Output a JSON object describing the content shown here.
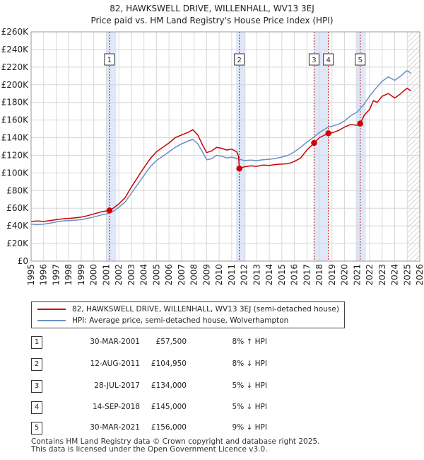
{
  "title_line1": "82, HAWKSWELL DRIVE, WILLENHALL, WV13 3EJ",
  "title_line2": "Price paid vs. HM Land Registry's House Price Index (HPI)",
  "colors": {
    "price_line": "#cc0000",
    "hpi_line": "#6a8fc4",
    "shade": "#dfe8f7",
    "vline": "#cc0000",
    "grid": "#d8d8d8"
  },
  "chart_data": {
    "type": "line",
    "xlim": [
      1995,
      2026
    ],
    "ylim": [
      0,
      260000
    ],
    "y_ticks": [
      {
        "value": 0,
        "label": "£0"
      },
      {
        "value": 20000,
        "label": "£20K"
      },
      {
        "value": 40000,
        "label": "£40K"
      },
      {
        "value": 60000,
        "label": "£60K"
      },
      {
        "value": 80000,
        "label": "£80K"
      },
      {
        "value": 100000,
        "label": "£100K"
      },
      {
        "value": 120000,
        "label": "£120K"
      },
      {
        "value": 140000,
        "label": "£140K"
      },
      {
        "value": 160000,
        "label": "£160K"
      },
      {
        "value": 180000,
        "label": "£180K"
      },
      {
        "value": 200000,
        "label": "£200K"
      },
      {
        "value": 220000,
        "label": "£220K"
      },
      {
        "value": 240000,
        "label": "£240K"
      },
      {
        "value": 260000,
        "label": "£260K"
      }
    ],
    "x_ticks": [
      "1995",
      "1996",
      "1997",
      "1998",
      "1999",
      "2000",
      "2001",
      "2002",
      "2003",
      "2004",
      "2005",
      "2006",
      "2007",
      "2008",
      "2009",
      "2010",
      "2011",
      "2012",
      "2013",
      "2014",
      "2015",
      "2016",
      "2017",
      "2018",
      "2019",
      "2020",
      "2021",
      "2022",
      "2023",
      "2024",
      "2025",
      "2026"
    ],
    "series": [
      {
        "name": "82, HAWKSWELL DRIVE, WILLENHALL, WV13 3EJ (semi-detached house)",
        "color": "#cc0000",
        "points": [
          [
            1995.0,
            45000
          ],
          [
            1995.5,
            45500
          ],
          [
            1996.0,
            45000
          ],
          [
            1996.5,
            46000
          ],
          [
            1997.0,
            47000
          ],
          [
            1997.5,
            48000
          ],
          [
            1998.0,
            48500
          ],
          [
            1998.5,
            49000
          ],
          [
            1999.0,
            50000
          ],
          [
            1999.5,
            51500
          ],
          [
            2000.0,
            53500
          ],
          [
            2000.5,
            55500
          ],
          [
            2001.0,
            57000
          ],
          [
            2001.25,
            57500
          ],
          [
            2001.6,
            60500
          ],
          [
            2002.0,
            65000
          ],
          [
            2002.5,
            72000
          ],
          [
            2003.0,
            84000
          ],
          [
            2003.5,
            95000
          ],
          [
            2004.0,
            106000
          ],
          [
            2004.5,
            116000
          ],
          [
            2005.0,
            124000
          ],
          [
            2005.5,
            129000
          ],
          [
            2006.0,
            134000
          ],
          [
            2006.5,
            140000
          ],
          [
            2007.0,
            143000
          ],
          [
            2007.5,
            146000
          ],
          [
            2007.9,
            149000
          ],
          [
            2008.3,
            143000
          ],
          [
            2008.7,
            131000
          ],
          [
            2009.0,
            123000
          ],
          [
            2009.4,
            125000
          ],
          [
            2009.8,
            129000
          ],
          [
            2010.2,
            128000
          ],
          [
            2010.6,
            126000
          ],
          [
            2011.0,
            127000
          ],
          [
            2011.4,
            124000
          ],
          [
            2011.55,
            119000
          ],
          [
            2011.61,
            104950
          ],
          [
            2012.0,
            107000
          ],
          [
            2012.5,
            108000
          ],
          [
            2013.0,
            107500
          ],
          [
            2013.5,
            109000
          ],
          [
            2014.0,
            108500
          ],
          [
            2014.5,
            109500
          ],
          [
            2015.0,
            110000
          ],
          [
            2015.5,
            110500
          ],
          [
            2016.0,
            113000
          ],
          [
            2016.5,
            117000
          ],
          [
            2017.0,
            126000
          ],
          [
            2017.57,
            134000
          ],
          [
            2018.0,
            140000
          ],
          [
            2018.7,
            145000
          ],
          [
            2019.0,
            145500
          ],
          [
            2019.5,
            148000
          ],
          [
            2020.0,
            152000
          ],
          [
            2020.5,
            155000
          ],
          [
            2021.0,
            154000
          ],
          [
            2021.25,
            156000
          ],
          [
            2021.6,
            166000
          ],
          [
            2022.0,
            172000
          ],
          [
            2022.3,
            182000
          ],
          [
            2022.6,
            180000
          ],
          [
            2023.0,
            187000
          ],
          [
            2023.5,
            190000
          ],
          [
            2024.0,
            185000
          ],
          [
            2024.4,
            189000
          ],
          [
            2024.8,
            194000
          ],
          [
            2025.0,
            196000
          ],
          [
            2025.3,
            193000
          ]
        ]
      },
      {
        "name": "HPI: Average price, semi-detached house, Wolverhampton",
        "color": "#6a8fc4",
        "points": [
          [
            1995.0,
            42000
          ],
          [
            1995.5,
            41500
          ],
          [
            1996.0,
            42000
          ],
          [
            1996.5,
            43000
          ],
          [
            1997.0,
            44500
          ],
          [
            1997.5,
            45500
          ],
          [
            1998.0,
            46000
          ],
          [
            1998.5,
            46500
          ],
          [
            1999.0,
            47000
          ],
          [
            1999.5,
            48500
          ],
          [
            2000.0,
            50000
          ],
          [
            2000.5,
            52000
          ],
          [
            2001.0,
            53500
          ],
          [
            2001.5,
            56000
          ],
          [
            2002.0,
            61000
          ],
          [
            2002.5,
            67000
          ],
          [
            2003.0,
            77000
          ],
          [
            2003.5,
            87000
          ],
          [
            2004.0,
            97000
          ],
          [
            2004.5,
            107000
          ],
          [
            2005.0,
            114000
          ],
          [
            2005.5,
            119000
          ],
          [
            2006.0,
            124000
          ],
          [
            2006.5,
            129000
          ],
          [
            2007.0,
            133000
          ],
          [
            2007.5,
            136000
          ],
          [
            2007.9,
            138000
          ],
          [
            2008.3,
            133000
          ],
          [
            2008.7,
            123000
          ],
          [
            2009.0,
            115000
          ],
          [
            2009.4,
            116000
          ],
          [
            2009.8,
            120000
          ],
          [
            2010.2,
            119000
          ],
          [
            2010.6,
            117000
          ],
          [
            2011.0,
            118000
          ],
          [
            2011.5,
            116000
          ],
          [
            2012.0,
            114000
          ],
          [
            2012.5,
            114500
          ],
          [
            2013.0,
            114000
          ],
          [
            2013.5,
            115000
          ],
          [
            2014.0,
            115500
          ],
          [
            2014.5,
            116500
          ],
          [
            2015.0,
            118000
          ],
          [
            2015.5,
            120000
          ],
          [
            2016.0,
            124000
          ],
          [
            2016.5,
            129000
          ],
          [
            2017.0,
            135000
          ],
          [
            2017.5,
            140000
          ],
          [
            2018.0,
            146000
          ],
          [
            2018.7,
            152000
          ],
          [
            2019.0,
            153000
          ],
          [
            2019.5,
            155000
          ],
          [
            2020.0,
            159000
          ],
          [
            2020.5,
            165000
          ],
          [
            2021.0,
            169000
          ],
          [
            2021.5,
            177000
          ],
          [
            2022.0,
            187000
          ],
          [
            2022.5,
            196000
          ],
          [
            2023.0,
            204000
          ],
          [
            2023.5,
            209000
          ],
          [
            2024.0,
            205000
          ],
          [
            2024.5,
            210000
          ],
          [
            2024.8,
            214000
          ],
          [
            2025.0,
            216000
          ],
          [
            2025.3,
            213000
          ]
        ]
      }
    ],
    "shaded_ranges": [
      [
        2001.0,
        2001.8
      ],
      [
        2011.35,
        2012.1
      ],
      [
        2017.57,
        2018.7
      ],
      [
        2020.9,
        2021.7
      ]
    ],
    "hatch_from": 2025.0,
    "markers": [
      {
        "num": "1",
        "x": 2001.25,
        "y": 57500
      },
      {
        "num": "2",
        "x": 2011.61,
        "y": 104950
      },
      {
        "num": "3",
        "x": 2017.57,
        "y": 134000
      },
      {
        "num": "4",
        "x": 2018.71,
        "y": 145000
      },
      {
        "num": "5",
        "x": 2021.25,
        "y": 156000
      }
    ]
  },
  "legend": {
    "price_label": "82, HAWKSWELL DRIVE, WILLENHALL, WV13 3EJ (semi-detached house)",
    "hpi_label": "HPI: Average price, semi-detached house, Wolverhampton"
  },
  "sales": [
    {
      "num": "1",
      "date": "30-MAR-2001",
      "price": "£57,500",
      "hpi": "8% ↑ HPI"
    },
    {
      "num": "2",
      "date": "12-AUG-2011",
      "price": "£104,950",
      "hpi": "8% ↓ HPI"
    },
    {
      "num": "3",
      "date": "28-JUL-2017",
      "price": "£134,000",
      "hpi": "5% ↓ HPI"
    },
    {
      "num": "4",
      "date": "14-SEP-2018",
      "price": "£145,000",
      "hpi": "5% ↓ HPI"
    },
    {
      "num": "5",
      "date": "30-MAR-2021",
      "price": "£156,000",
      "hpi": "9% ↓ HPI"
    }
  ],
  "footer": {
    "line1": "Contains HM Land Registry data © Crown copyright and database right 2025.",
    "line2": "This data is licensed under the Open Government Licence v3.0."
  }
}
